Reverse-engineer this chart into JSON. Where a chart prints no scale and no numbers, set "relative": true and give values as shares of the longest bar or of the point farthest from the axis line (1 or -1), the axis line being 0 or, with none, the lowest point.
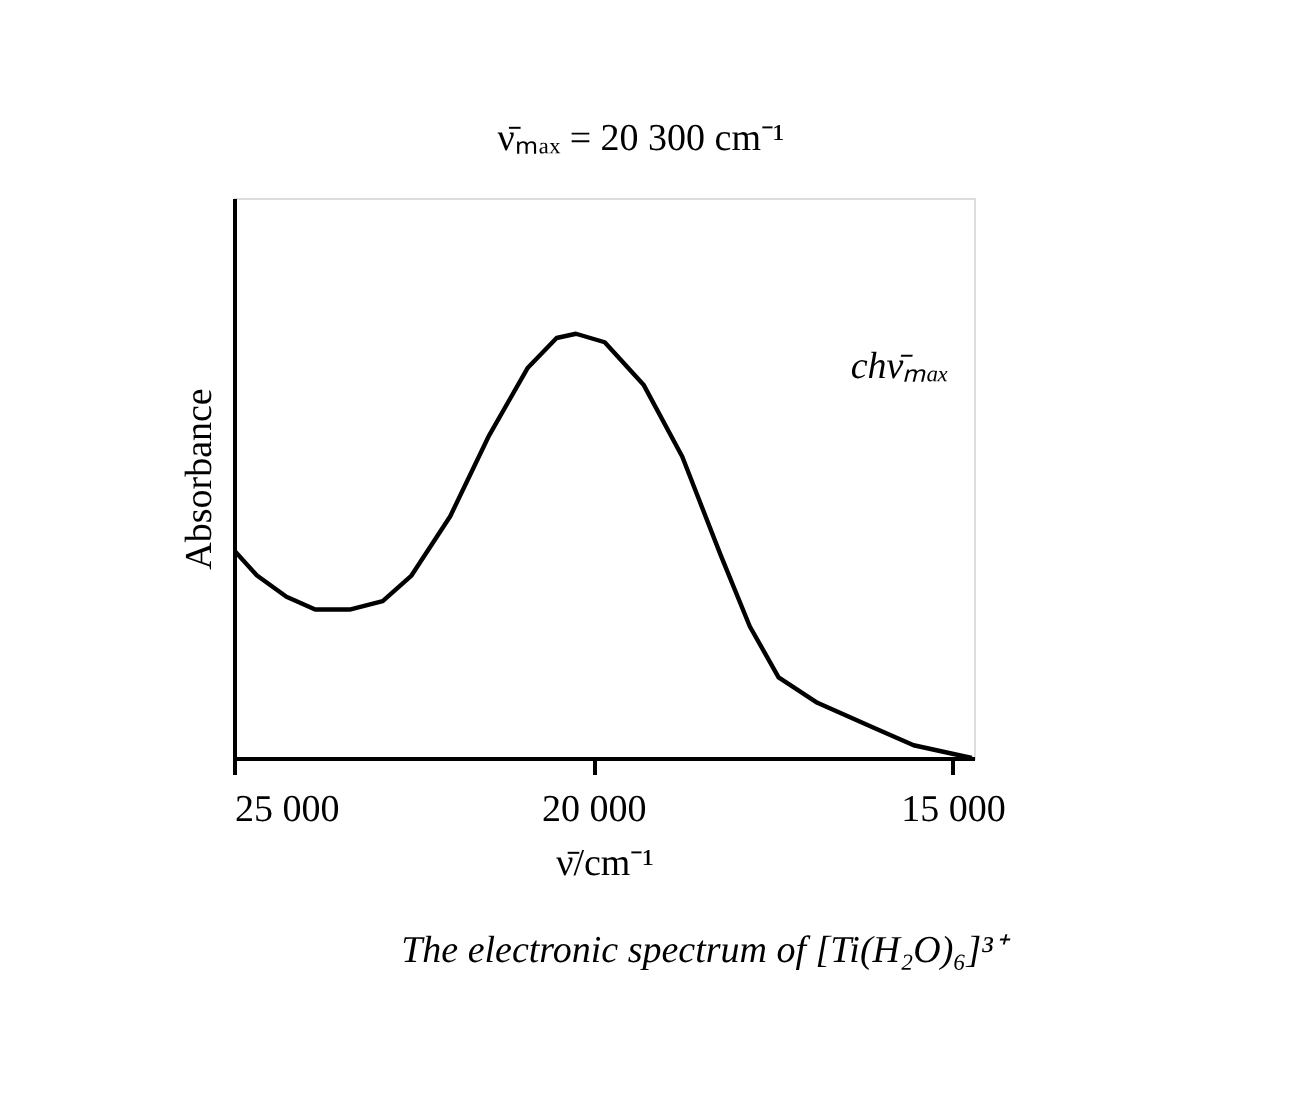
{
  "chart_data": {
    "type": "line",
    "relative": true,
    "xlabel": "ν̄/cm⁻¹",
    "ylabel": "Absorbance",
    "x": [
      25000,
      24680,
      24270,
      23870,
      23390,
      22930,
      22530,
      21990,
      21450,
      20910,
      20510,
      20240,
      19840,
      19300,
      18760,
      18230,
      17820,
      17420,
      16880,
      16080,
      15540,
      15000,
      14730
    ],
    "series": [
      {
        "color": "#000000",
        "values": [
          0.49,
          0.43,
          0.38,
          0.35,
          0.35,
          0.37,
          0.43,
          0.57,
          0.76,
          0.92,
          0.99,
          1.0,
          0.98,
          0.88,
          0.71,
          0.48,
          0.31,
          0.19,
          0.13,
          0.07,
          0.03,
          0.01,
          0
        ]
      }
    ],
    "xlim": [
      25000,
      14700
    ],
    "xticks": [
      {
        "value": 25000,
        "label": "25 000"
      },
      {
        "value": 20000,
        "label": "20 000"
      },
      {
        "value": 15000,
        "label": "15 000"
      }
    ],
    "annotations": [
      "ν̄ₘₐₓ = 20 300 cm⁻¹",
      "chν̄ₘₐₓ",
      "The electronic spectrum of [Ti(H₂O)₆]³⁺"
    ],
    "grid": false,
    "marker": "none",
    "line_style": "solid"
  }
}
